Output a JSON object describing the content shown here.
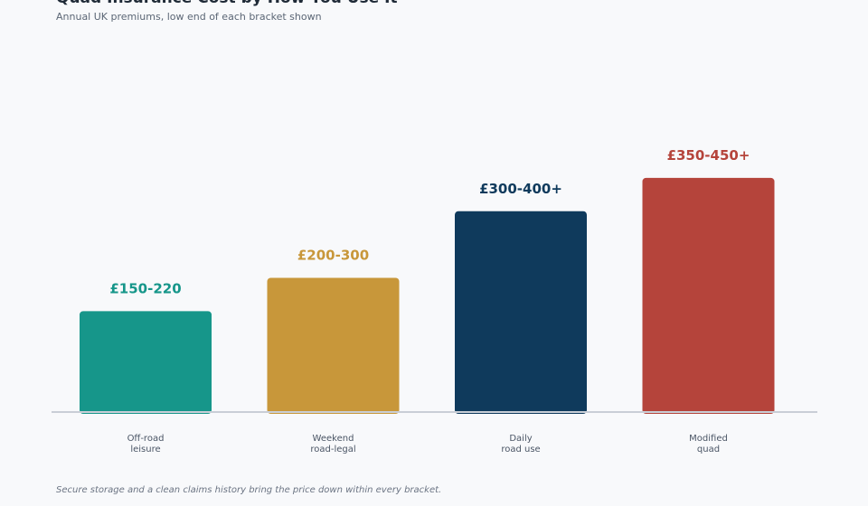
{
  "title": "Quad Insurance Cost by How You Use It",
  "subtitle": "Annual UK premiums, low end of each bracket shown",
  "footnote": "Secure storage and a clean claims history bring the price down within every bracket.",
  "chart_data": {
    "type": "bar",
    "title": "Quad Insurance Cost by How You Use It",
    "subtitle": "Annual UK premiums, low end of each bracket shown",
    "categories": [
      [
        "Off-road",
        "leisure"
      ],
      [
        "Weekend",
        "road-legal"
      ],
      [
        "Daily",
        "road use"
      ],
      [
        "Modified",
        "quad"
      ]
    ],
    "values": [
      150,
      200,
      300,
      350
    ],
    "data_labels": [
      "£150-220",
      "£200-300",
      "£300-400+",
      "£350-450+"
    ],
    "colors": [
      "#16968a",
      "#c8973a",
      "#0f3a5c",
      "#b5443b"
    ],
    "axis_color": "#c9ced6",
    "ylim": [
      0,
      400
    ],
    "xlabel": "",
    "ylabel": "",
    "grid": false,
    "legend": "none"
  }
}
